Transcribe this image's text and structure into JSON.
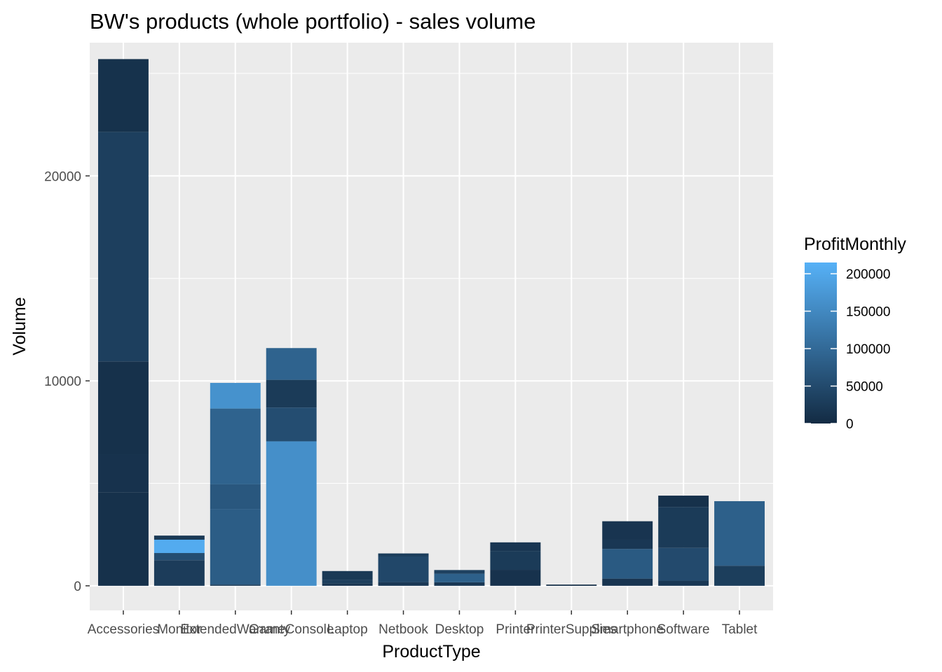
{
  "chart_data": {
    "type": "bar",
    "stacked": true,
    "title": "BW's products (whole portfolio) - sales volume",
    "xlabel": "ProductType",
    "ylabel": "Volume",
    "ylim": [
      -1200,
      26500
    ],
    "yticks": [
      0,
      10000,
      20000
    ],
    "grid": true,
    "legend": {
      "title": "ProfitMonthly",
      "position": "right",
      "type": "colorbar",
      "range": [
        0,
        215000
      ],
      "ticks": [
        0,
        50000,
        100000,
        150000,
        200000
      ],
      "color_low": "#132b43",
      "color_high": "#56b1f7"
    },
    "categories": [
      "Accessories",
      "Monitor",
      "ExtendedWarranty",
      "GameConsole",
      "Laptop",
      "Netbook",
      "Desktop",
      "Printer",
      "PrinterSupplies",
      "Smartphone",
      "Software",
      "Tablet"
    ],
    "bars": [
      {
        "category": "Accessories",
        "segments": [
          {
            "volume": 4550,
            "profit": 9000
          },
          {
            "volume": 1850,
            "profit": 12000
          },
          {
            "volume": 4550,
            "profit": 10000
          },
          {
            "volume": 11200,
            "profit": 32000
          },
          {
            "volume": 3550,
            "profit": 11000
          }
        ]
      },
      {
        "category": "Monitor",
        "segments": [
          {
            "volume": 1250,
            "profit": 28000
          },
          {
            "volume": 350,
            "profit": 55000
          },
          {
            "volume": 650,
            "profit": 205000
          },
          {
            "volume": 200,
            "profit": 22000
          }
        ]
      },
      {
        "category": "ExtendedWarranty",
        "segments": [
          {
            "volume": 60,
            "profit": 25000
          },
          {
            "volume": 3690,
            "profit": 80000
          },
          {
            "volume": 1200,
            "profit": 70000
          },
          {
            "volume": 3700,
            "profit": 90000
          },
          {
            "volume": 1250,
            "profit": 165000
          }
        ]
      },
      {
        "category": "GameConsole",
        "segments": [
          {
            "volume": 7050,
            "profit": 160000
          },
          {
            "volume": 1650,
            "profit": 55000
          },
          {
            "volume": 1350,
            "profit": 25000
          },
          {
            "volume": 1550,
            "profit": 90000
          }
        ]
      },
      {
        "category": "Laptop",
        "segments": [
          {
            "volume": 120,
            "profit": 15000
          },
          {
            "volume": 180,
            "profit": 30000
          },
          {
            "volume": 420,
            "profit": 22000
          }
        ]
      },
      {
        "category": "Netbook",
        "segments": [
          {
            "volume": 180,
            "profit": 20000
          },
          {
            "volume": 1250,
            "profit": 45000
          },
          {
            "volume": 150,
            "profit": 30000
          }
        ]
      },
      {
        "category": "Desktop",
        "segments": [
          {
            "volume": 170,
            "profit": 20000
          },
          {
            "volume": 420,
            "profit": 85000
          },
          {
            "volume": 180,
            "profit": 35000
          }
        ]
      },
      {
        "category": "Printer",
        "segments": [
          {
            "volume": 780,
            "profit": 12000
          },
          {
            "volume": 920,
            "profit": 25000
          },
          {
            "volume": 420,
            "profit": 18000
          }
        ]
      },
      {
        "category": "PrinterSupplies",
        "segments": [
          {
            "volume": 60,
            "profit": 3000
          }
        ]
      },
      {
        "category": "Smartphone",
        "segments": [
          {
            "volume": 350,
            "profit": 15000
          },
          {
            "volume": 1450,
            "profit": 75000
          },
          {
            "volume": 450,
            "profit": 20000
          },
          {
            "volume": 900,
            "profit": 15000
          }
        ]
      },
      {
        "category": "Software",
        "segments": [
          {
            "volume": 250,
            "profit": 20000
          },
          {
            "volume": 1600,
            "profit": 50000
          },
          {
            "volume": 2000,
            "profit": 25000
          },
          {
            "volume": 550,
            "profit": 10000
          }
        ]
      },
      {
        "category": "Tablet",
        "segments": [
          {
            "volume": 980,
            "profit": 30000
          },
          {
            "volume": 3150,
            "profit": 85000
          }
        ]
      }
    ]
  }
}
